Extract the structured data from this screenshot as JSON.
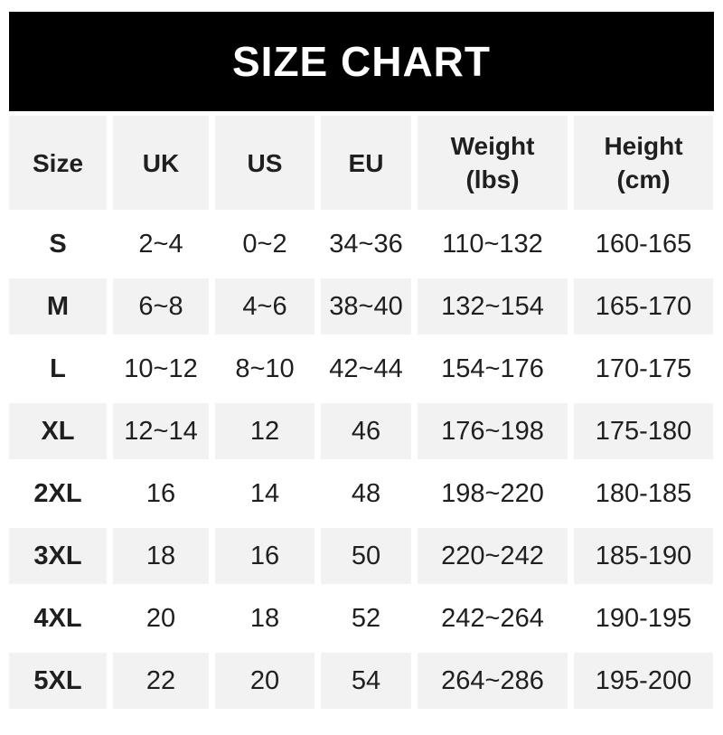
{
  "colors": {
    "banner_bg": "#000000",
    "banner_text": "#ffffff",
    "row_alt_bg": "#f2f2f2",
    "row_bg": "#ffffff",
    "text": "#1f1f1f"
  },
  "chart_data": {
    "type": "table",
    "title": "SIZE CHART",
    "columns": [
      {
        "label": "Size"
      },
      {
        "label": "UK"
      },
      {
        "label": "US"
      },
      {
        "label": "EU"
      },
      {
        "label": "Weight",
        "sub": "(lbs)"
      },
      {
        "label": "Height",
        "sub": "(cm)"
      }
    ],
    "rows": [
      {
        "size": "S",
        "uk": "2~4",
        "us": "0~2",
        "eu": "34~36",
        "weight": "110~132",
        "height": "160-165"
      },
      {
        "size": "M",
        "uk": "6~8",
        "us": "4~6",
        "eu": "38~40",
        "weight": "132~154",
        "height": "165-170"
      },
      {
        "size": "L",
        "uk": "10~12",
        "us": "8~10",
        "eu": "42~44",
        "weight": "154~176",
        "height": "170-175"
      },
      {
        "size": "XL",
        "uk": "12~14",
        "us": "12",
        "eu": "46",
        "weight": "176~198",
        "height": "175-180"
      },
      {
        "size": "2XL",
        "uk": "16",
        "us": "14",
        "eu": "48",
        "weight": "198~220",
        "height": "180-185"
      },
      {
        "size": "3XL",
        "uk": "18",
        "us": "16",
        "eu": "50",
        "weight": "220~242",
        "height": "185-190"
      },
      {
        "size": "4XL",
        "uk": "20",
        "us": "18",
        "eu": "52",
        "weight": "242~264",
        "height": "190-195"
      },
      {
        "size": "5XL",
        "uk": "22",
        "us": "20",
        "eu": "54",
        "weight": "264~286",
        "height": "195-200"
      }
    ]
  }
}
